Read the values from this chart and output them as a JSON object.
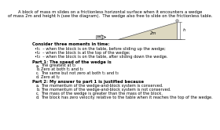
{
  "title_line1": "A block of mass m slides on a frictionless horizontal surface when it encounters a wedge",
  "title_line2": "of mass 2m and height h (see the diagram).  The wedge also free to slide on the frictionless table.",
  "wedge_label": "2m",
  "block_label": "m",
  "height_label": "h",
  "consider_text": "Consider three moments in time:",
  "bullets": [
    "t₁  – when the block is on the table, before sliding up the wedge;",
    "t₂  – when the block is at the top of the wedge;",
    "t₃  – when the block is on the table, after sliding down the wedge."
  ],
  "part1_header": "Part 1: The speed of the wedge is",
  "part1_options": [
    "The greatest at t₃",
    "Zero at both t₁ and t₃",
    "The same but not zero at both t₁ and t₃",
    "Zero at t₂"
  ],
  "part1_letters": [
    "a.",
    "b.",
    "c.",
    "d."
  ],
  "part2_header": "Part 2: My answer to part 1 is justified because",
  "part2_options": [
    "The momentum of the wedge-and-block system is conserved.",
    "The momentum of the wedge-and-block system is not conserved.",
    "The mass of the wedge is greater than the mass of the block.",
    "The block has zero velocity relative to the table when it reaches the top of the wedge."
  ],
  "part2_letters": [
    "a.",
    "b.",
    "c.",
    "d."
  ],
  "bg_color": "#ffffff",
  "text_color": "#000000",
  "wedge_fill": "#ddd8c0",
  "wedge_edge": "#555555",
  "table_color": "#555555"
}
